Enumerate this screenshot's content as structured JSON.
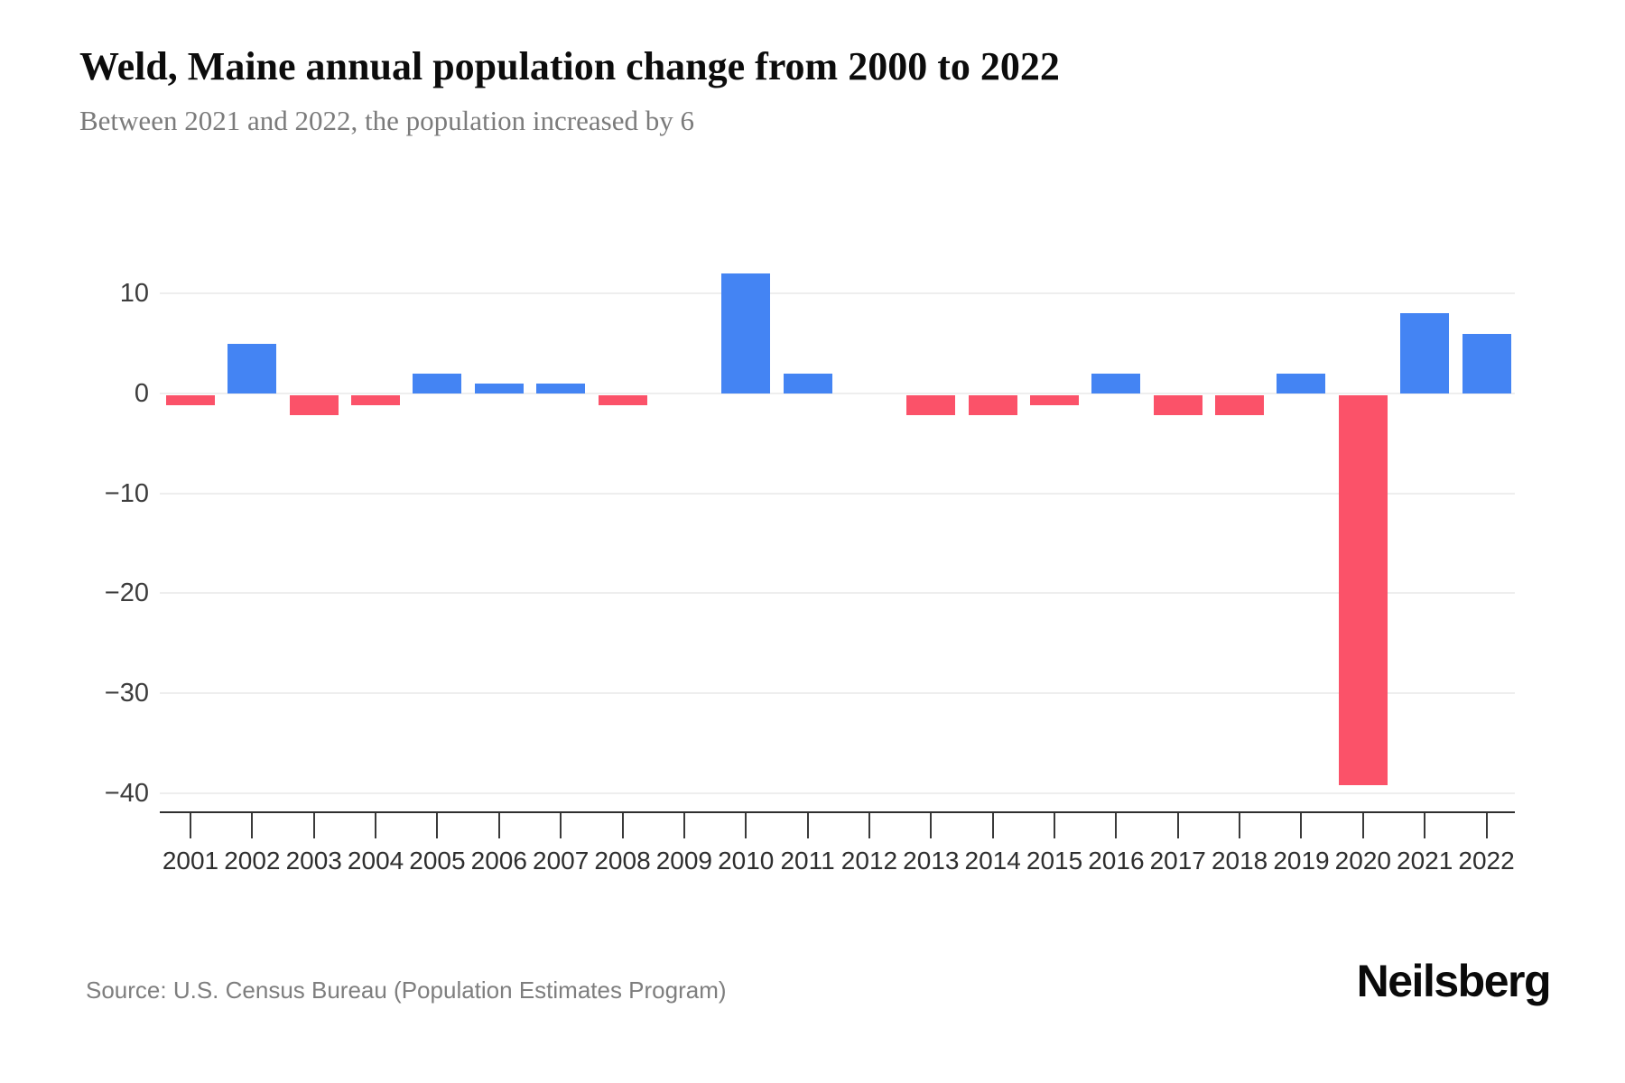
{
  "chart_data": {
    "type": "bar",
    "title": "Weld, Maine annual population change from 2000 to 2022",
    "subtitle": "Between 2021 and 2022, the population increased by 6",
    "categories": [
      "2001",
      "2002",
      "2003",
      "2004",
      "2005",
      "2006",
      "2007",
      "2008",
      "2009",
      "2010",
      "2011",
      "2012",
      "2013",
      "2014",
      "2015",
      "2016",
      "2017",
      "2018",
      "2019",
      "2020",
      "2021",
      "2022"
    ],
    "values": [
      -1,
      5,
      -2,
      -1,
      2,
      1,
      1,
      -1,
      0,
      12,
      2,
      0,
      -2,
      -2,
      -1,
      2,
      -2,
      -2,
      2,
      -39,
      8,
      6
    ],
    "xlabel": "",
    "ylabel": "",
    "yticks": [
      10,
      0,
      -10,
      -20,
      -30,
      -40
    ],
    "ylim": [
      -42,
      17
    ],
    "grid": "horizontal",
    "legend": "none",
    "colors": {
      "positive": "#4484F3",
      "negative": "#FB5269",
      "gridline": "#EEEEEE",
      "axis": "#2F2F2F"
    },
    "source": "Source: U.S. Census Bureau (Population Estimates Program)",
    "brand": "Neilsberg"
  }
}
